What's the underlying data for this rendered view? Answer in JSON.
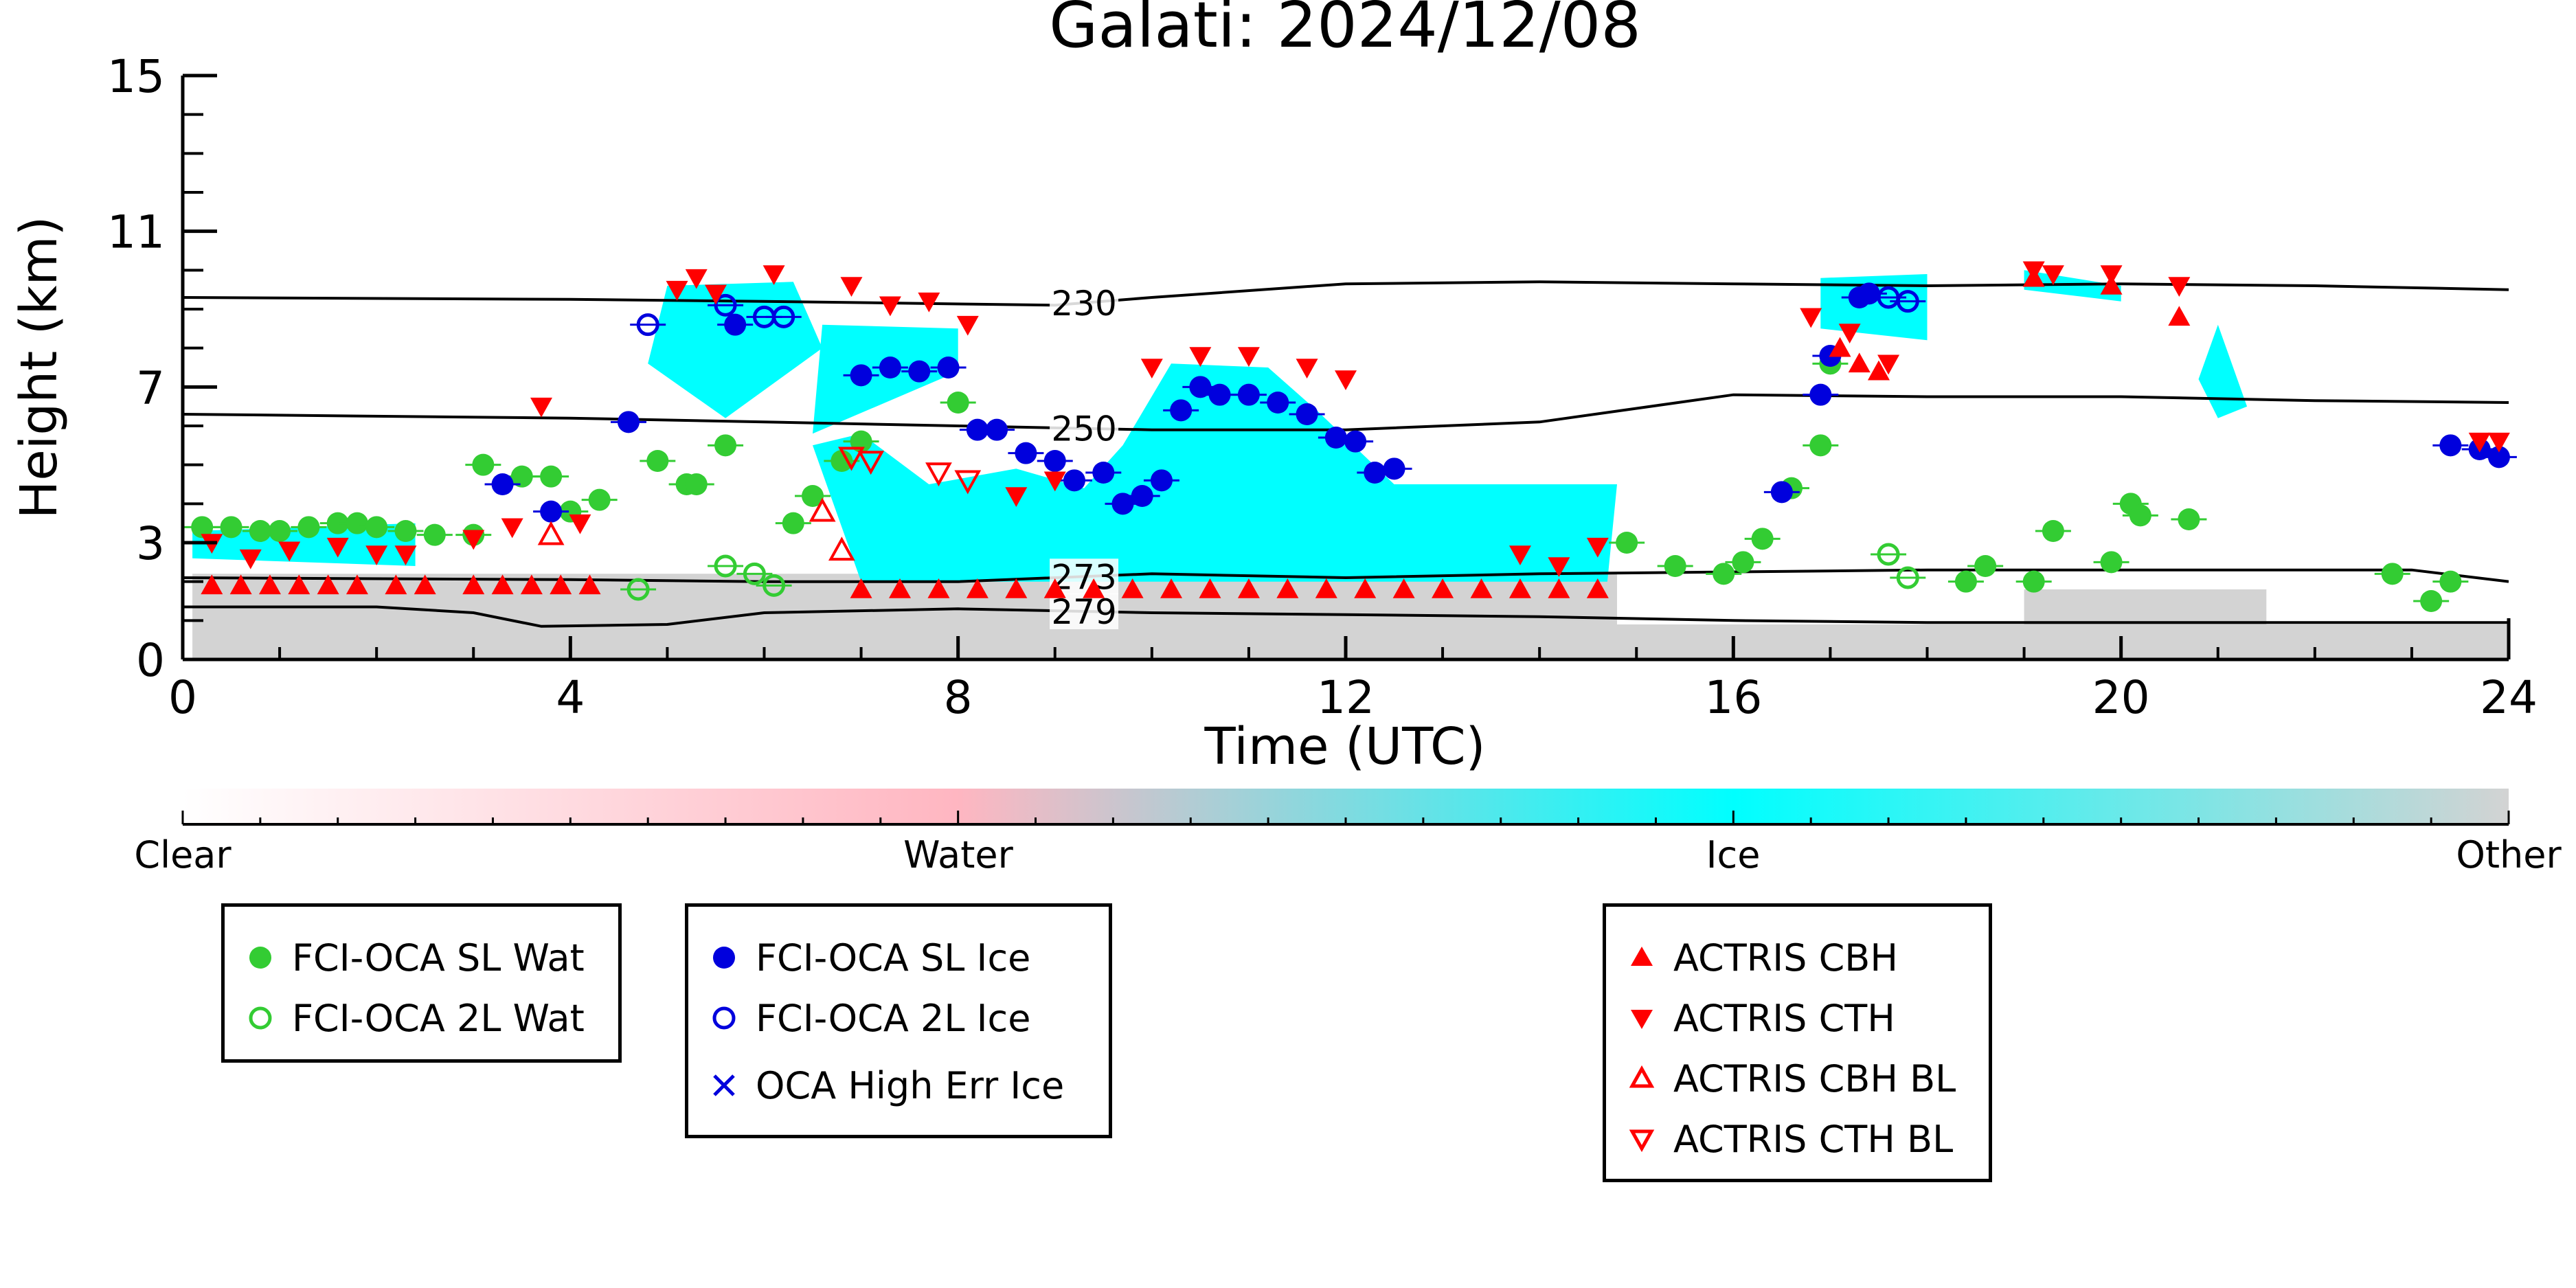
{
  "chart_data": {
    "type": "scatter",
    "title": "Galati: 2024/12/08",
    "xlabel": "Time (UTC)",
    "ylabel": "Height (km)",
    "xlim": [
      0,
      24
    ],
    "ylim": [
      0,
      15
    ],
    "x_ticks": [
      "0",
      "4",
      "8",
      "12",
      "16",
      "20",
      "24"
    ],
    "y_ticks": [
      "0",
      "3",
      "7",
      "11",
      "15"
    ],
    "colorbar": {
      "labels": [
        "Clear",
        "Water",
        "Ice",
        "Other"
      ],
      "colors": [
        "#ffffff",
        "#ffb6c1",
        "#00ffff",
        "#d3d3d3"
      ]
    },
    "contours": [
      {
        "label": "230",
        "label_x": 9.3,
        "points": [
          [
            0,
            9.3
          ],
          [
            4,
            9.25
          ],
          [
            6,
            9.2
          ],
          [
            9,
            9.1
          ],
          [
            10,
            9.3
          ],
          [
            12,
            9.65
          ],
          [
            14,
            9.7
          ],
          [
            16,
            9.65
          ],
          [
            18,
            9.6
          ],
          [
            20,
            9.65
          ],
          [
            22,
            9.6
          ],
          [
            24,
            9.5
          ]
        ]
      },
      {
        "label": "250",
        "label_x": 9.3,
        "points": [
          [
            0,
            6.3
          ],
          [
            4,
            6.2
          ],
          [
            6,
            6.1
          ],
          [
            8,
            6.0
          ],
          [
            10,
            5.9
          ],
          [
            12,
            5.9
          ],
          [
            14,
            6.1
          ],
          [
            16,
            6.8
          ],
          [
            18,
            6.75
          ],
          [
            20,
            6.75
          ],
          [
            22,
            6.65
          ],
          [
            24,
            6.6
          ]
        ]
      },
      {
        "label": "273",
        "label_x": 9.3,
        "points": [
          [
            0,
            2.1
          ],
          [
            4,
            2.05
          ],
          [
            6,
            2.0
          ],
          [
            8,
            2.0
          ],
          [
            10,
            2.2
          ],
          [
            12,
            2.1
          ],
          [
            14,
            2.2
          ],
          [
            16,
            2.25
          ],
          [
            18,
            2.3
          ],
          [
            20,
            2.3
          ],
          [
            22,
            2.3
          ],
          [
            23,
            2.3
          ],
          [
            24,
            2.0
          ]
        ]
      },
      {
        "label": "279",
        "label_x": 9.3,
        "points": [
          [
            0,
            1.35
          ],
          [
            2,
            1.35
          ],
          [
            3,
            1.2
          ],
          [
            3.7,
            0.85
          ],
          [
            5,
            0.9
          ],
          [
            6,
            1.2
          ],
          [
            8,
            1.3
          ],
          [
            10,
            1.2
          ],
          [
            12,
            1.15
          ],
          [
            14,
            1.1
          ],
          [
            16,
            1.0
          ],
          [
            18,
            0.95
          ],
          [
            20,
            0.95
          ],
          [
            22,
            0.95
          ],
          [
            24,
            0.95
          ]
        ]
      }
    ],
    "ice_cloud_regions": [
      [
        [
          0.1,
          2.6
        ],
        [
          0.1,
          3.3
        ],
        [
          2.4,
          3.5
        ],
        [
          2.4,
          2.4
        ]
      ],
      [
        [
          4.8,
          7.6
        ],
        [
          5.0,
          9.6
        ],
        [
          6.3,
          9.7
        ],
        [
          6.6,
          8.0
        ],
        [
          5.6,
          6.2
        ]
      ],
      [
        [
          6.5,
          5.8
        ],
        [
          6.6,
          8.6
        ],
        [
          8.0,
          8.5
        ],
        [
          8.0,
          7.4
        ]
      ],
      [
        [
          6.5,
          5.5
        ],
        [
          7.0,
          2.0
        ],
        [
          14.7,
          2.0
        ],
        [
          14.8,
          4.5
        ],
        [
          12.5,
          4.5
        ],
        [
          11.7,
          6.4
        ],
        [
          11.2,
          7.5
        ],
        [
          10.2,
          7.6
        ],
        [
          9.7,
          5.5
        ],
        [
          9.3,
          4.4
        ],
        [
          8.6,
          4.9
        ],
        [
          7.7,
          4.5
        ],
        [
          7.0,
          5.8
        ]
      ],
      [
        [
          16.9,
          8.5
        ],
        [
          16.9,
          9.8
        ],
        [
          18.0,
          9.9
        ],
        [
          18.0,
          8.2
        ]
      ],
      [
        [
          19.0,
          9.5
        ],
        [
          19.0,
          10.0
        ],
        [
          20.0,
          9.6
        ],
        [
          20.0,
          9.2
        ]
      ],
      [
        [
          20.8,
          7.2
        ],
        [
          21.0,
          8.6
        ],
        [
          21.3,
          6.5
        ],
        [
          21.0,
          6.2
        ]
      ]
    ],
    "other_regions": [
      [
        [
          0.1,
          0
        ],
        [
          0.1,
          2.2
        ],
        [
          14.8,
          2.2
        ],
        [
          14.8,
          0
        ]
      ],
      [
        [
          14.8,
          0
        ],
        [
          14.8,
          0.9
        ],
        [
          24,
          0.9
        ],
        [
          24,
          0
        ]
      ],
      [
        [
          19.0,
          0.4
        ],
        [
          19.0,
          1.8
        ],
        [
          21.5,
          1.8
        ],
        [
          21.5,
          0.4
        ]
      ]
    ],
    "series": [
      {
        "name": "FCI-OCA SL Wat",
        "marker": "filled-circle",
        "color": "#33cc33",
        "points": [
          [
            0.2,
            3.4
          ],
          [
            0.5,
            3.4
          ],
          [
            0.8,
            3.3
          ],
          [
            1.0,
            3.3
          ],
          [
            1.3,
            3.4
          ],
          [
            1.6,
            3.5
          ],
          [
            1.8,
            3.5
          ],
          [
            2.0,
            3.4
          ],
          [
            2.3,
            3.3
          ],
          [
            2.6,
            3.2
          ],
          [
            3.0,
            3.2
          ],
          [
            3.1,
            5.0
          ],
          [
            3.5,
            4.7
          ],
          [
            3.8,
            4.7
          ],
          [
            4.0,
            3.8
          ],
          [
            4.3,
            4.1
          ],
          [
            4.9,
            5.1
          ],
          [
            5.2,
            4.5
          ],
          [
            5.3,
            4.5
          ],
          [
            5.6,
            5.5
          ],
          [
            6.3,
            3.5
          ],
          [
            6.5,
            4.2
          ],
          [
            6.8,
            5.1
          ],
          [
            7.0,
            5.6
          ],
          [
            8.0,
            6.6
          ],
          [
            14.9,
            3.0
          ],
          [
            15.4,
            2.4
          ],
          [
            15.9,
            2.2
          ],
          [
            16.1,
            2.5
          ],
          [
            16.3,
            3.1
          ],
          [
            16.6,
            4.4
          ],
          [
            16.9,
            5.5
          ],
          [
            17.0,
            7.6
          ],
          [
            18.4,
            2.0
          ],
          [
            18.6,
            2.4
          ],
          [
            19.1,
            2.0
          ],
          [
            19.3,
            3.3
          ],
          [
            19.9,
            2.5
          ],
          [
            20.1,
            4.0
          ],
          [
            20.2,
            3.7
          ],
          [
            20.7,
            3.6
          ],
          [
            22.8,
            2.2
          ],
          [
            23.2,
            1.5
          ],
          [
            23.4,
            2.0
          ]
        ]
      },
      {
        "name": "FCI-OCA 2L Wat",
        "marker": "open-circle",
        "color": "#33cc33",
        "points": [
          [
            4.7,
            1.8
          ],
          [
            5.6,
            2.4
          ],
          [
            5.9,
            2.2
          ],
          [
            6.1,
            1.9
          ],
          [
            17.6,
            2.7
          ],
          [
            17.8,
            2.1
          ]
        ]
      },
      {
        "name": "FCI-OCA SL Ice",
        "marker": "filled-circle",
        "color": "#0000dd",
        "points": [
          [
            3.3,
            4.5
          ],
          [
            3.8,
            3.8
          ],
          [
            4.6,
            6.1
          ],
          [
            5.7,
            8.6
          ],
          [
            7.0,
            7.3
          ],
          [
            7.3,
            7.5
          ],
          [
            7.6,
            7.4
          ],
          [
            7.9,
            7.5
          ],
          [
            8.2,
            5.9
          ],
          [
            8.4,
            5.9
          ],
          [
            8.7,
            5.3
          ],
          [
            9.0,
            5.1
          ],
          [
            9.2,
            4.6
          ],
          [
            9.5,
            4.8
          ],
          [
            9.7,
            4.0
          ],
          [
            9.9,
            4.2
          ],
          [
            10.1,
            4.6
          ],
          [
            10.3,
            6.4
          ],
          [
            10.5,
            7.0
          ],
          [
            10.7,
            6.8
          ],
          [
            11.0,
            6.8
          ],
          [
            11.3,
            6.6
          ],
          [
            11.6,
            6.3
          ],
          [
            11.9,
            5.7
          ],
          [
            12.1,
            5.6
          ],
          [
            12.3,
            4.8
          ],
          [
            12.5,
            4.9
          ],
          [
            16.5,
            4.3
          ],
          [
            16.9,
            6.8
          ],
          [
            17.0,
            7.8
          ],
          [
            17.3,
            9.3
          ],
          [
            17.4,
            9.4
          ],
          [
            23.4,
            5.5
          ],
          [
            23.7,
            5.4
          ],
          [
            23.9,
            5.2
          ]
        ]
      },
      {
        "name": "FCI-OCA 2L Ice",
        "marker": "open-circle",
        "color": "#0000dd",
        "points": [
          [
            4.8,
            8.6
          ],
          [
            5.6,
            9.1
          ],
          [
            6.0,
            8.8
          ],
          [
            6.2,
            8.8
          ],
          [
            17.6,
            9.3
          ],
          [
            17.8,
            9.2
          ]
        ]
      },
      {
        "name": "OCA High Err Ice",
        "marker": "cross",
        "color": "#0000dd",
        "points": []
      },
      {
        "name": "ACTRIS CBH",
        "marker": "triangle-up",
        "color": "#ff0000",
        "points": [
          [
            0.3,
            1.9
          ],
          [
            0.6,
            1.9
          ],
          [
            0.9,
            1.9
          ],
          [
            1.2,
            1.9
          ],
          [
            1.5,
            1.9
          ],
          [
            1.8,
            1.9
          ],
          [
            2.2,
            1.9
          ],
          [
            2.5,
            1.9
          ],
          [
            3.0,
            1.9
          ],
          [
            3.3,
            1.9
          ],
          [
            3.6,
            1.9
          ],
          [
            3.9,
            1.9
          ],
          [
            4.2,
            1.9
          ],
          [
            7.0,
            1.8
          ],
          [
            7.4,
            1.8
          ],
          [
            7.8,
            1.8
          ],
          [
            8.2,
            1.8
          ],
          [
            8.6,
            1.8
          ],
          [
            9.0,
            1.8
          ],
          [
            9.4,
            1.8
          ],
          [
            9.8,
            1.8
          ],
          [
            10.2,
            1.8
          ],
          [
            10.6,
            1.8
          ],
          [
            11.0,
            1.8
          ],
          [
            11.4,
            1.8
          ],
          [
            11.8,
            1.8
          ],
          [
            12.2,
            1.8
          ],
          [
            12.6,
            1.8
          ],
          [
            13.0,
            1.8
          ],
          [
            13.4,
            1.8
          ],
          [
            13.8,
            1.8
          ],
          [
            14.2,
            1.8
          ],
          [
            14.6,
            1.8
          ],
          [
            17.1,
            8.0
          ],
          [
            17.3,
            7.6
          ],
          [
            17.5,
            7.4
          ],
          [
            19.1,
            9.8
          ],
          [
            19.9,
            9.6
          ],
          [
            20.6,
            8.8
          ]
        ]
      },
      {
        "name": "ACTRIS CTH",
        "marker": "triangle-down",
        "color": "#ff0000",
        "points": [
          [
            0.3,
            3.0
          ],
          [
            0.7,
            2.6
          ],
          [
            1.1,
            2.8
          ],
          [
            1.6,
            2.9
          ],
          [
            2.0,
            2.7
          ],
          [
            2.3,
            2.7
          ],
          [
            3.0,
            3.1
          ],
          [
            3.4,
            3.4
          ],
          [
            3.7,
            6.5
          ],
          [
            4.1,
            3.5
          ],
          [
            5.1,
            9.5
          ],
          [
            5.3,
            9.8
          ],
          [
            5.5,
            9.4
          ],
          [
            6.1,
            9.9
          ],
          [
            6.9,
            9.6
          ],
          [
            7.3,
            9.1
          ],
          [
            7.7,
            9.2
          ],
          [
            8.1,
            8.6
          ],
          [
            8.6,
            4.2
          ],
          [
            9.0,
            4.6
          ],
          [
            10.0,
            7.5
          ],
          [
            10.5,
            7.8
          ],
          [
            11.0,
            7.8
          ],
          [
            11.6,
            7.5
          ],
          [
            12.0,
            7.2
          ],
          [
            13.8,
            2.7
          ],
          [
            14.2,
            2.4
          ],
          [
            14.6,
            2.9
          ],
          [
            16.8,
            8.8
          ],
          [
            17.2,
            8.4
          ],
          [
            17.6,
            7.6
          ],
          [
            19.1,
            10.0
          ],
          [
            19.3,
            9.9
          ],
          [
            19.9,
            9.9
          ],
          [
            20.6,
            9.6
          ],
          [
            23.7,
            5.6
          ],
          [
            23.9,
            5.6
          ]
        ]
      },
      {
        "name": "ACTRIS CBH BL",
        "marker": "open-triangle-up",
        "color": "#ff0000",
        "points": [
          [
            3.8,
            3.2
          ],
          [
            6.6,
            3.8
          ],
          [
            6.8,
            2.8
          ]
        ]
      },
      {
        "name": "ACTRIS CTH BL",
        "marker": "open-triangle-down",
        "color": "#ff0000",
        "points": [
          [
            6.9,
            5.2
          ],
          [
            7.1,
            5.1
          ],
          [
            7.8,
            4.8
          ],
          [
            8.1,
            4.6
          ]
        ]
      }
    ],
    "legend_groups": [
      [
        "FCI-OCA SL Wat",
        "FCI-OCA 2L Wat"
      ],
      [
        "FCI-OCA SL Ice",
        "FCI-OCA 2L Ice",
        "OCA High Err Ice"
      ],
      [
        "ACTRIS CBH",
        "ACTRIS CTH",
        "ACTRIS CBH BL",
        "ACTRIS CTH BL"
      ]
    ]
  }
}
